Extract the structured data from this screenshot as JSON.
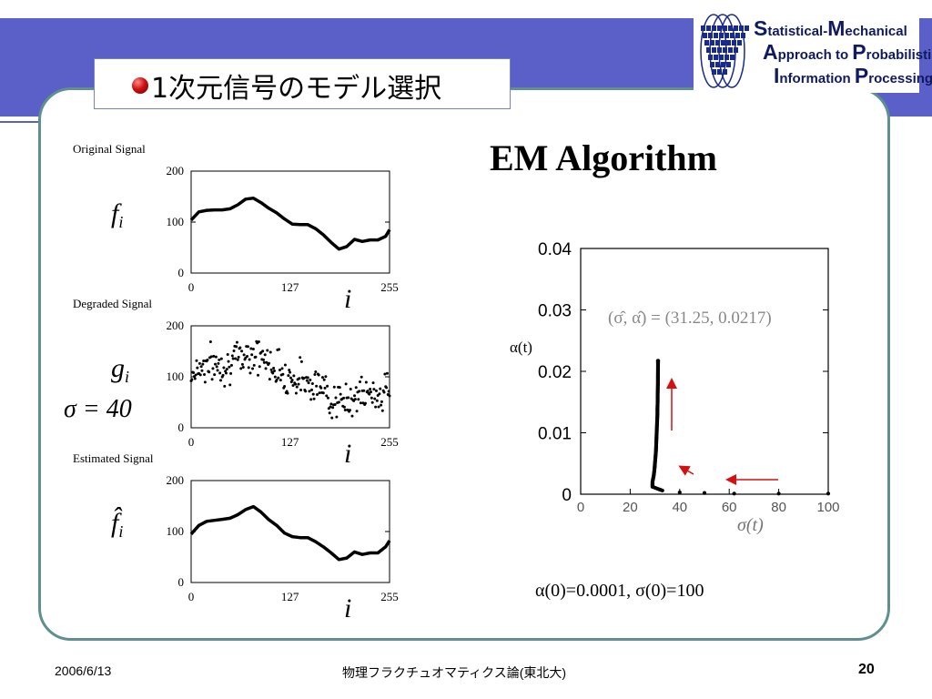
{
  "slide": {
    "title": "1次元信号のモデル選択",
    "em_title": "EM Algorithm",
    "initial_condition": "α(0)=0.0001, σ(0)=100",
    "sigma_note": "σ = 40"
  },
  "logo": {
    "lines": [
      {
        "cap": "S",
        "rest": "tatistical-",
        "cap2": "M",
        "rest2": "echanical"
      },
      {
        "cap": "A",
        "rest": "pproach to ",
        "cap2": "P",
        "rest2": "robabilistic"
      },
      {
        "cap": "I",
        "rest": "nformation ",
        "cap2": "P",
        "rest2": "rocessing"
      }
    ],
    "colors": {
      "text": "#101a60",
      "mark": "#1a2a8a"
    }
  },
  "footer": {
    "date": "2006/6/13",
    "course": "物理フラクチュオマティクス論(東北大)",
    "page": "20"
  },
  "colors": {
    "banner": "#5b60c8",
    "frame": "#5f8f8f",
    "arrow": "#d41010"
  },
  "chart_data": [
    {
      "type": "line",
      "title": "Original Signal",
      "ylabel": "f_i",
      "xlabel": "i",
      "xlim": [
        0,
        255
      ],
      "ylim": [
        0,
        200
      ],
      "x_ticks": [
        "0",
        "127",
        "255"
      ],
      "y_ticks": [
        "0",
        "100",
        "200"
      ],
      "x": [
        0,
        10,
        20,
        30,
        40,
        50,
        60,
        70,
        80,
        90,
        100,
        110,
        120,
        130,
        140,
        150,
        160,
        170,
        180,
        190,
        200,
        210,
        220,
        230,
        240,
        250,
        255
      ],
      "values": [
        104,
        120,
        123,
        124,
        124,
        126,
        134,
        145,
        147,
        138,
        127,
        118,
        106,
        96,
        95,
        95,
        87,
        75,
        60,
        47,
        52,
        66,
        62,
        65,
        65,
        72,
        85
      ]
    },
    {
      "type": "scatter",
      "title": "Degraded Signal",
      "ylabel": "g_i",
      "xlabel": "i",
      "xlim": [
        0,
        255
      ],
      "ylim": [
        0,
        200
      ],
      "x_ticks": [
        "0",
        "127",
        "255"
      ],
      "y_ticks": [
        "0",
        "100",
        "200"
      ],
      "sigma": 40
    },
    {
      "type": "line",
      "title": "Estimated Signal",
      "ylabel": "f̂_i",
      "xlabel": "i",
      "xlim": [
        0,
        255
      ],
      "ylim": [
        0,
        200
      ],
      "x_ticks": [
        "0",
        "127",
        "255"
      ],
      "y_ticks": [
        "0",
        "100",
        "200"
      ],
      "x": [
        0,
        10,
        20,
        30,
        40,
        50,
        60,
        70,
        80,
        90,
        100,
        110,
        120,
        130,
        140,
        150,
        160,
        170,
        180,
        190,
        200,
        210,
        220,
        230,
        240,
        250,
        255
      ],
      "values": [
        95,
        112,
        120,
        122,
        124,
        126,
        133,
        143,
        149,
        138,
        123,
        112,
        97,
        90,
        88,
        88,
        80,
        70,
        58,
        45,
        48,
        60,
        55,
        58,
        58,
        70,
        82
      ]
    },
    {
      "type": "scatter",
      "title": "",
      "xlabel": "σ(t)",
      "ylabel": "α(t)",
      "xlim": [
        0,
        100
      ],
      "ylim": [
        0,
        0.04
      ],
      "x_ticks": [
        "0",
        "20",
        "40",
        "60",
        "80",
        "100"
      ],
      "y_ticks": [
        "0",
        "0.01",
        "0.02",
        "0.03",
        "0.04"
      ],
      "annotation": "(σ̂, α̂) = (31.25, 0.0217)",
      "points": [
        [
          100,
          0.0001
        ],
        [
          80,
          0.0001
        ],
        [
          62,
          0.0001
        ],
        [
          50,
          0.0002
        ],
        [
          40,
          0.0003
        ],
        [
          33,
          0.0006
        ],
        [
          29,
          0.0012
        ],
        [
          29,
          0.002
        ],
        [
          29.5,
          0.003
        ],
        [
          29.8,
          0.004
        ],
        [
          30,
          0.005
        ],
        [
          30.2,
          0.006
        ],
        [
          30.4,
          0.007
        ],
        [
          30.5,
          0.008
        ],
        [
          30.6,
          0.009
        ],
        [
          30.7,
          0.01
        ],
        [
          30.8,
          0.011
        ],
        [
          30.9,
          0.012
        ],
        [
          31.0,
          0.013
        ],
        [
          31.0,
          0.014
        ],
        [
          31.1,
          0.015
        ],
        [
          31.1,
          0.016
        ],
        [
          31.15,
          0.017
        ],
        [
          31.2,
          0.018
        ],
        [
          31.2,
          0.019
        ],
        [
          31.22,
          0.02
        ],
        [
          31.24,
          0.021
        ],
        [
          31.25,
          0.0217
        ]
      ]
    }
  ]
}
